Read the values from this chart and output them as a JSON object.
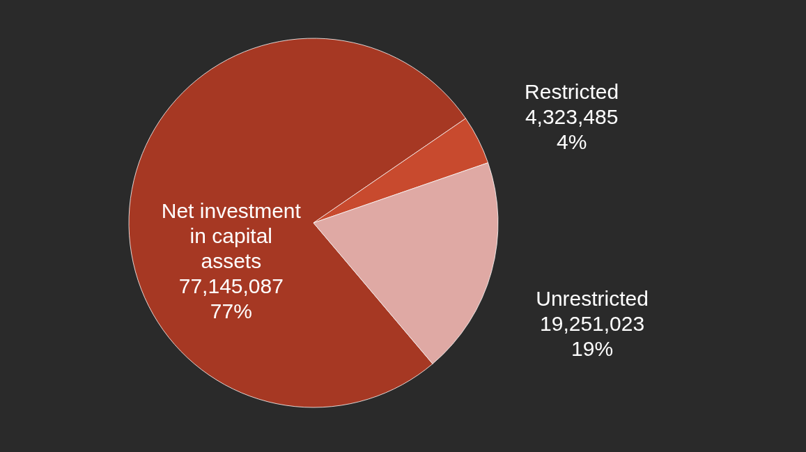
{
  "chart_data": {
    "type": "pie",
    "categories": [
      "Net investment in capital assets",
      "Restricted",
      "Unrestricted"
    ],
    "values": [
      77145087,
      4323485,
      19251023
    ],
    "colors": [
      "#a63823",
      "#c84a2e",
      "#dfa9a4"
    ],
    "value_labels": [
      "77,145,087\n77%",
      "4,323,485\n4%",
      "19,251,023\n19%"
    ]
  }
}
